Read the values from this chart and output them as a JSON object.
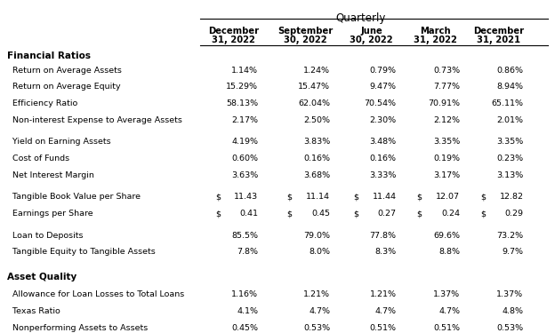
{
  "title": "Quarterly",
  "col_headers": [
    [
      "December",
      "31, 2022"
    ],
    [
      "September",
      "30, 2022"
    ],
    [
      "June",
      "30, 2022"
    ],
    [
      "March",
      "31, 2022"
    ],
    [
      "December",
      "31, 2021"
    ]
  ],
  "sections": [
    {
      "label": "Financial Ratios",
      "rows": [
        {
          "label": "Return on Average Assets",
          "values": [
            "1.14%",
            "1.24%",
            "0.79%",
            "0.73%",
            "0.86%"
          ],
          "dollar": [
            false,
            false,
            false,
            false,
            false
          ]
        },
        {
          "label": "Return on Average Equity",
          "values": [
            "15.29%",
            "15.47%",
            "9.47%",
            "7.77%",
            "8.94%"
          ],
          "dollar": [
            false,
            false,
            false,
            false,
            false
          ]
        },
        {
          "label": "Efficiency Ratio",
          "values": [
            "58.13%",
            "62.04%",
            "70.54%",
            "70.91%",
            "65.11%"
          ],
          "dollar": [
            false,
            false,
            false,
            false,
            false
          ]
        },
        {
          "label": "Non-interest Expense to Average Assets",
          "values": [
            "2.17%",
            "2.50%",
            "2.30%",
            "2.12%",
            "2.01%"
          ],
          "dollar": [
            false,
            false,
            false,
            false,
            false
          ]
        }
      ]
    },
    {
      "label": "",
      "rows": [
        {
          "label": "Yield on Earning Assets",
          "values": [
            "4.19%",
            "3.83%",
            "3.48%",
            "3.35%",
            "3.35%"
          ],
          "dollar": [
            false,
            false,
            false,
            false,
            false
          ]
        },
        {
          "label": "Cost of Funds",
          "values": [
            "0.60%",
            "0.16%",
            "0.16%",
            "0.19%",
            "0.23%"
          ],
          "dollar": [
            false,
            false,
            false,
            false,
            false
          ]
        },
        {
          "label": "Net Interest Margin",
          "values": [
            "3.63%",
            "3.68%",
            "3.33%",
            "3.17%",
            "3.13%"
          ],
          "dollar": [
            false,
            false,
            false,
            false,
            false
          ]
        }
      ]
    },
    {
      "label": "",
      "rows": [
        {
          "label": "Tangible Book Value per Share",
          "values": [
            "11.43",
            "11.14",
            "11.44",
            "12.07",
            "12.82"
          ],
          "dollar": [
            true,
            true,
            true,
            true,
            true
          ]
        },
        {
          "label": "Earnings per Share",
          "values": [
            "0.41",
            "0.45",
            "0.27",
            "0.24",
            "0.29"
          ],
          "dollar": [
            true,
            true,
            true,
            true,
            true
          ]
        }
      ]
    },
    {
      "label": "",
      "rows": [
        {
          "label": "Loan to Deposits",
          "values": [
            "85.5%",
            "79.0%",
            "77.8%",
            "69.6%",
            "73.2%"
          ],
          "dollar": [
            false,
            false,
            false,
            false,
            false
          ]
        },
        {
          "label": "Tangible Equity to Tangible Assets",
          "values": [
            "7.8%",
            "8.0%",
            "8.3%",
            "8.8%",
            "9.7%"
          ],
          "dollar": [
            false,
            false,
            false,
            false,
            false
          ]
        }
      ]
    }
  ],
  "asset_quality": {
    "label": "Asset Quality",
    "rows": [
      {
        "label": "Allowance for Loan Losses to Total Loans",
        "values": [
          "1.16%",
          "1.21%",
          "1.21%",
          "1.37%",
          "1.37%"
        ],
        "dollar": [
          false,
          false,
          false,
          false,
          false
        ]
      },
      {
        "label": "Texas Ratio",
        "values": [
          "4.1%",
          "4.7%",
          "4.7%",
          "4.7%",
          "4.8%"
        ],
        "dollar": [
          false,
          false,
          false,
          false,
          false
        ]
      },
      {
        "label": "Nonperforming Assets to Assets",
        "values": [
          "0.45%",
          "0.53%",
          "0.51%",
          "0.51%",
          "0.53%"
        ],
        "dollar": [
          false,
          false,
          false,
          false,
          false
        ]
      }
    ]
  },
  "bg_color": "#ffffff",
  "text_color": "#000000",
  "header_line_color": "#000000"
}
